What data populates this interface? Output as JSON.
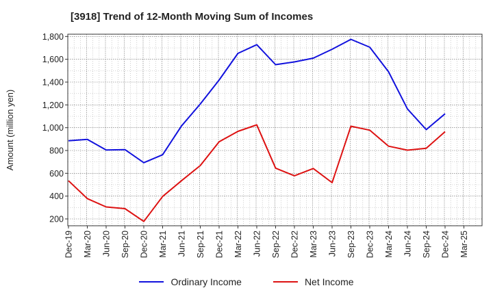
{
  "chart_data": {
    "type": "line",
    "title": "[3918]  Trend of 12-Month Moving Sum of Incomes",
    "xlabel": "",
    "ylabel": "Amount (million yen)",
    "ylim": [
      140,
      1820
    ],
    "yticks": [
      "200",
      "400",
      "600",
      "800",
      "1,000",
      "1,200",
      "1,400",
      "1,600",
      "1,800"
    ],
    "ytick_values": [
      200,
      400,
      600,
      800,
      1000,
      1200,
      1400,
      1600,
      1800
    ],
    "categories": [
      "Dec-19",
      "Mar-20",
      "Jun-20",
      "Sep-20",
      "Dec-20",
      "Mar-21",
      "Jun-21",
      "Sep-21",
      "Dec-21",
      "Mar-22",
      "Jun-22",
      "Sep-22",
      "Dec-22",
      "Mar-23",
      "Jun-23",
      "Sep-23",
      "Dec-23",
      "Mar-24",
      "Jun-24",
      "Sep-24",
      "Dec-24",
      "Mar-25"
    ],
    "series": [
      {
        "name": "Ordinary Income",
        "color": "#1111dd",
        "values": [
          885,
          897,
          805,
          808,
          693,
          763,
          1015,
          1208,
          1418,
          1652,
          1728,
          1553,
          1577,
          1610,
          1688,
          1775,
          1706,
          1490,
          1165,
          983,
          1122,
          null
        ]
      },
      {
        "name": "Net Income",
        "color": "#dd1111",
        "values": [
          535,
          378,
          305,
          290,
          178,
          397,
          535,
          668,
          877,
          968,
          1025,
          645,
          578,
          642,
          518,
          1013,
          978,
          838,
          803,
          820,
          965,
          null
        ]
      }
    ],
    "legend": "bottom-center",
    "grid": true
  }
}
